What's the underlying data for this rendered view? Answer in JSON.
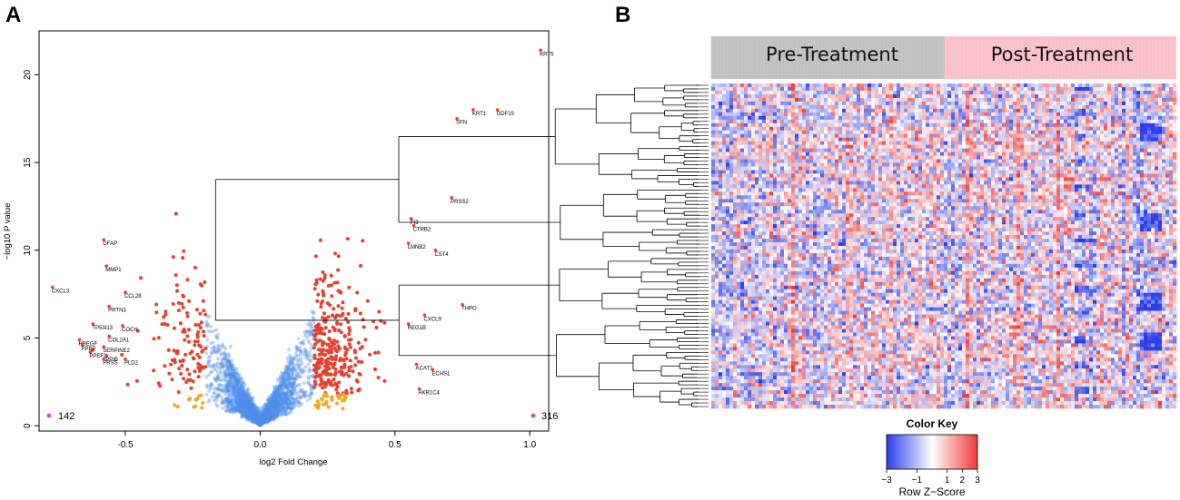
{
  "panels": {
    "a_letter": "A",
    "b_letter": "B"
  },
  "chart_data": [
    {
      "type": "scatter",
      "title": "",
      "xlabel": "log2 Fold Change",
      "ylabel": "−log10 P value",
      "xlim": [
        -0.82,
        1.07
      ],
      "ylim": [
        -0.3,
        22.5
      ],
      "x_ticks": [
        -0.5,
        0.0,
        0.5,
        1.0
      ],
      "x_tick_labels": [
        "-0.5",
        "0.0",
        "0.5",
        "1.0"
      ],
      "y_ticks": [
        0,
        5,
        10,
        15,
        20
      ],
      "y_tick_labels": [
        "0",
        "5",
        "10",
        "15",
        "20"
      ],
      "significant_threshold_log2fc": 0.2,
      "counts": {
        "down": "142",
        "up": "316"
      },
      "colors": {
        "nonsig": "#4f8fec",
        "sig": "#e8402f",
        "near": "#f5a623",
        "count_dot": "#c44ddb"
      },
      "labeled_genes": [
        {
          "name": "KRT5",
          "x": 1.04,
          "y": 21.4
        },
        {
          "name": "KRT1",
          "x": 0.79,
          "y": 18.0
        },
        {
          "name": "GDF15",
          "x": 0.88,
          "y": 18.0
        },
        {
          "name": "SFN",
          "x": 0.73,
          "y": 17.5
        },
        {
          "name": "PRSS2",
          "x": 0.71,
          "y": 13.0
        },
        {
          "name": "PI3",
          "x": 0.56,
          "y": 11.8
        },
        {
          "name": "CTRB2",
          "x": 0.57,
          "y": 11.4
        },
        {
          "name": "LMNB2",
          "x": 0.55,
          "y": 10.4
        },
        {
          "name": "CST4",
          "x": 0.65,
          "y": 10.0
        },
        {
          "name": "THPO",
          "x": 0.75,
          "y": 6.9
        },
        {
          "name": "CXCL9",
          "x": 0.61,
          "y": 6.3
        },
        {
          "name": "REG1B",
          "x": 0.55,
          "y": 5.8
        },
        {
          "name": "ACAT1",
          "x": 0.58,
          "y": 3.5
        },
        {
          "name": "ECHS1",
          "x": 0.64,
          "y": 3.2
        },
        {
          "name": "AKR1C4",
          "x": 0.59,
          "y": 2.1
        },
        {
          "name": "GFAP",
          "x": -0.58,
          "y": 10.6
        },
        {
          "name": "MMP1",
          "x": -0.57,
          "y": 9.1
        },
        {
          "name": "CXCL3",
          "x": -0.77,
          "y": 7.9
        },
        {
          "name": "CCL28",
          "x": -0.5,
          "y": 7.6
        },
        {
          "name": "PRTN3",
          "x": -0.56,
          "y": 6.8
        },
        {
          "name": "TP53I13",
          "x": -0.62,
          "y": 5.8
        },
        {
          "name": "COCH",
          "x": -0.51,
          "y": 5.7
        },
        {
          "name": "COL2A1",
          "x": -0.56,
          "y": 5.1
        },
        {
          "name": "HBEGF",
          "x": -0.67,
          "y": 4.9
        },
        {
          "name": "PPBP",
          "x": -0.66,
          "y": 4.6
        },
        {
          "name": "SERPINE2",
          "x": -0.58,
          "y": 4.5
        },
        {
          "name": "PPEF1",
          "x": -0.63,
          "y": 4.2
        },
        {
          "name": "PPIB",
          "x": -0.57,
          "y": 4.0
        },
        {
          "name": "PRSS",
          "x": -0.58,
          "y": 3.8
        },
        {
          "name": "PLD2",
          "x": -0.5,
          "y": 3.8
        }
      ]
    },
    {
      "type": "heatmap",
      "title": "",
      "groups": [
        {
          "label": "Pre-Treatment",
          "color": "#c4c4c4"
        },
        {
          "label": "Post-Treatment",
          "color": "#fbc3cb"
        }
      ],
      "color_key": {
        "title": "Color Key",
        "label": "Row Z−Score",
        "range": [
          -3,
          3
        ],
        "tick_labels": [
          "−3",
          "−1",
          "1",
          "2",
          "3"
        ],
        "low_color": "#2a3fe8",
        "mid_color": "#ffffff",
        "high_color": "#ef3b3b"
      },
      "dendrogram": "rows"
    }
  ]
}
